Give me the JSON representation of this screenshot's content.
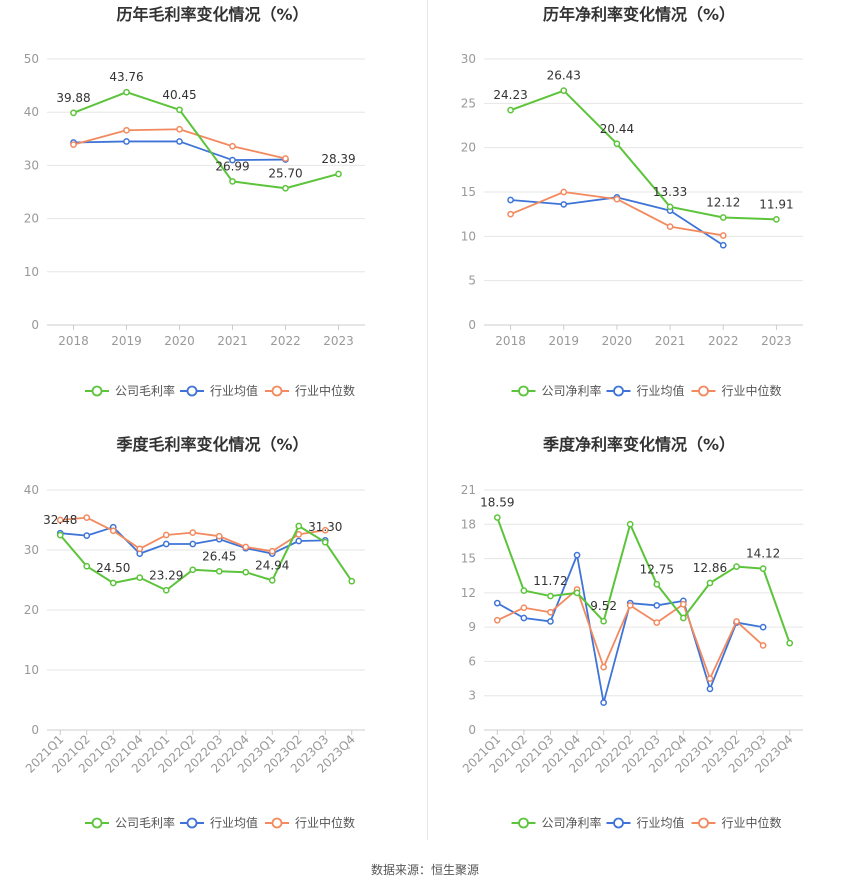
{
  "source_text": "数据来源：恒生聚源",
  "colors": {
    "company": "#5cc43b",
    "industry_avg": "#3e74d8",
    "industry_median": "#f38a5f",
    "grid": "#e6e6e6",
    "axis_text": "#999999",
    "title": "#333333"
  },
  "chart_data": [
    {
      "type": "line",
      "title": "历年毛利率变化情况（%）",
      "categories": [
        "2018",
        "2019",
        "2020",
        "2021",
        "2022",
        "2023"
      ],
      "ylim": [
        0,
        50
      ],
      "yticks": [
        0,
        10,
        20,
        30,
        40,
        50
      ],
      "grid": true,
      "legend_position": "bottom",
      "series": [
        {
          "name": "公司毛利率",
          "values": [
            39.88,
            43.76,
            40.45,
            26.99,
            25.7,
            28.39
          ],
          "labels": [
            "39.88",
            "43.76",
            "40.45",
            "26.99",
            "25.70",
            "28.39"
          ]
        },
        {
          "name": "行业均值",
          "values": [
            34.3,
            34.5,
            34.5,
            31.0,
            31.1,
            null
          ]
        },
        {
          "name": "行业中位数",
          "values": [
            33.9,
            36.6,
            36.8,
            33.6,
            31.3,
            null
          ]
        }
      ]
    },
    {
      "type": "line",
      "title": "历年净利率变化情况（%）",
      "categories": [
        "2018",
        "2019",
        "2020",
        "2021",
        "2022",
        "2023"
      ],
      "ylim": [
        0,
        30
      ],
      "yticks": [
        0,
        5,
        10,
        15,
        20,
        25,
        30
      ],
      "grid": true,
      "legend_position": "bottom",
      "series": [
        {
          "name": "公司净利率",
          "values": [
            24.23,
            26.43,
            20.44,
            13.33,
            12.12,
            11.91
          ],
          "labels": [
            "24.23",
            "26.43",
            "20.44",
            "13.33",
            "12.12",
            "11.91"
          ]
        },
        {
          "name": "行业均值",
          "values": [
            14.1,
            13.6,
            14.4,
            12.9,
            9.0,
            null
          ]
        },
        {
          "name": "行业中位数",
          "values": [
            12.5,
            15.0,
            14.2,
            11.1,
            10.1,
            null
          ]
        }
      ]
    },
    {
      "type": "line",
      "title": "季度毛利率变化情况（%）",
      "categories": [
        "2021Q1",
        "2021Q2",
        "2021Q3",
        "2021Q4",
        "2022Q1",
        "2022Q2",
        "2022Q3",
        "2022Q4",
        "2023Q1",
        "2023Q2",
        "2023Q3",
        "2023Q4"
      ],
      "ylim": [
        0,
        40
      ],
      "yticks": [
        0,
        10,
        20,
        30,
        40
      ],
      "grid": true,
      "legend_position": "bottom",
      "series": [
        {
          "name": "公司毛利率",
          "values": [
            32.48,
            27.3,
            24.5,
            25.4,
            23.29,
            26.7,
            26.45,
            26.3,
            24.94,
            34.0,
            31.3,
            24.8
          ],
          "labels": [
            "32.48",
            "",
            "24.50",
            "",
            "23.29",
            "",
            "26.45",
            "",
            "24.94",
            "",
            "31.30",
            ""
          ]
        },
        {
          "name": "行业均值",
          "values": [
            32.8,
            32.4,
            33.8,
            29.4,
            31.0,
            31.0,
            31.8,
            30.3,
            29.4,
            31.5,
            31.6,
            null
          ]
        },
        {
          "name": "行业中位数",
          "values": [
            35.0,
            35.4,
            33.2,
            30.2,
            32.5,
            32.9,
            32.3,
            30.5,
            29.8,
            32.6,
            33.3,
            null
          ]
        }
      ]
    },
    {
      "type": "line",
      "title": "季度净利率变化情况（%）",
      "categories": [
        "2021Q1",
        "2021Q2",
        "2021Q3",
        "2021Q4",
        "2022Q1",
        "2022Q2",
        "2022Q3",
        "2022Q4",
        "2023Q1",
        "2023Q2",
        "2023Q3",
        "2023Q4"
      ],
      "ylim": [
        0,
        21
      ],
      "yticks": [
        0,
        3,
        6,
        9,
        12,
        15,
        18,
        21
      ],
      "grid": true,
      "legend_position": "bottom",
      "series": [
        {
          "name": "公司净利率",
          "values": [
            18.59,
            12.2,
            11.72,
            12.0,
            9.52,
            18.0,
            12.75,
            9.8,
            12.86,
            14.3,
            14.12,
            7.6
          ],
          "labels": [
            "18.59",
            "",
            "11.72",
            "",
            "9.52",
            "",
            "12.75",
            "",
            "12.86",
            "",
            "14.12",
            ""
          ]
        },
        {
          "name": "行业均值",
          "values": [
            11.1,
            9.8,
            9.5,
            15.3,
            2.4,
            11.1,
            10.9,
            11.3,
            3.6,
            9.4,
            9.0,
            null
          ]
        },
        {
          "name": "行业中位数",
          "values": [
            9.6,
            10.7,
            10.3,
            12.3,
            5.5,
            10.9,
            9.4,
            11.0,
            4.5,
            9.5,
            7.4,
            null
          ]
        }
      ]
    }
  ]
}
